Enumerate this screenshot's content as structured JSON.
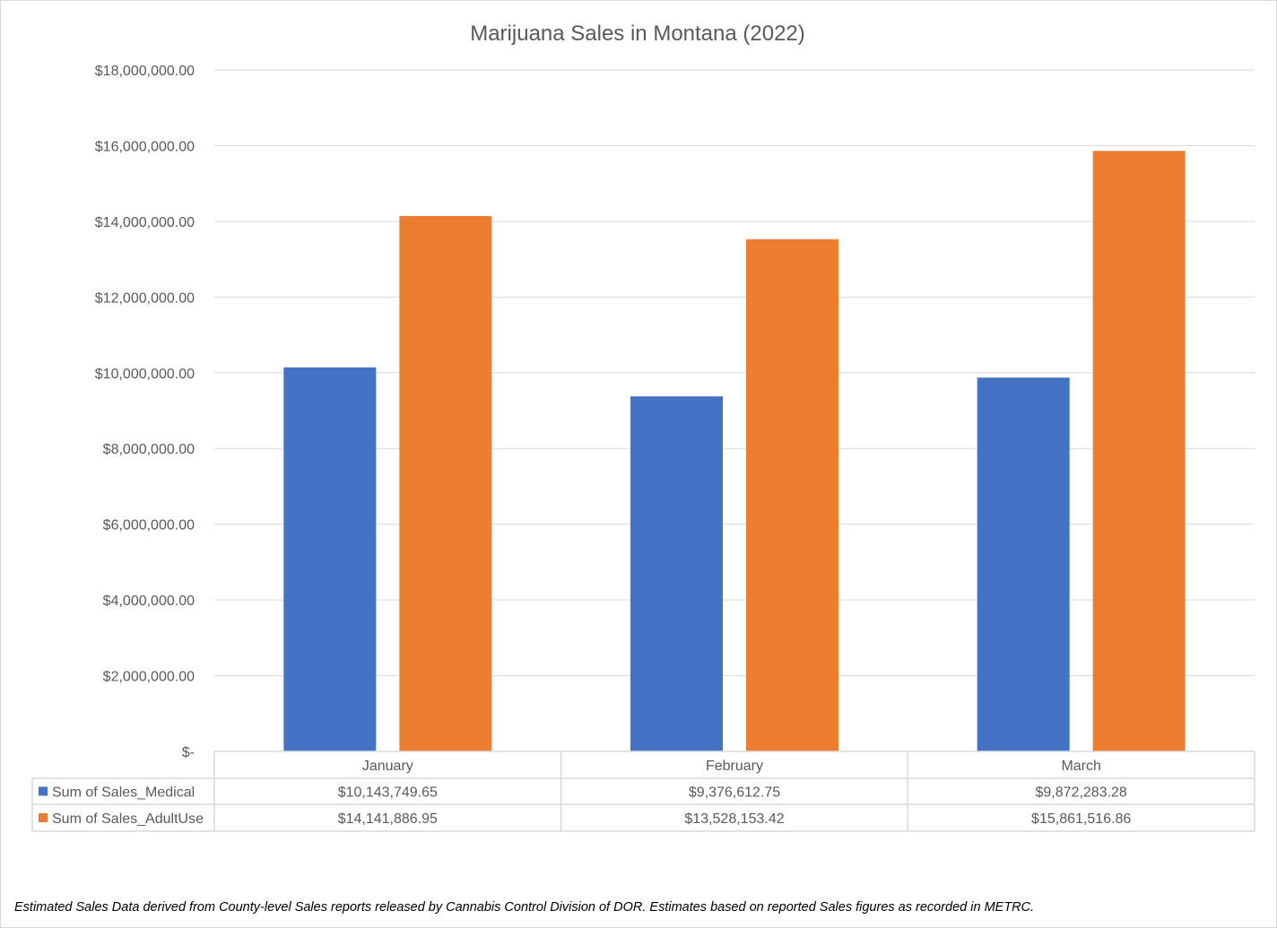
{
  "chart_data": {
    "type": "bar",
    "title": "Marijuana Sales in Montana (2022)",
    "categories": [
      "January",
      "February",
      "March"
    ],
    "series": [
      {
        "name": "Sum of Sales_Medical",
        "color": "#4472c4",
        "values": [
          10143749.65,
          9376612.75,
          9872283.28
        ],
        "labels": [
          "$10,143,749.65",
          "$9,376,612.75",
          "$9,872,283.28"
        ]
      },
      {
        "name": "Sum of Sales_AdultUse",
        "color": "#ed7d31",
        "values": [
          14141886.95,
          13528153.42,
          15861516.86
        ],
        "labels": [
          "$14,141,886.95",
          "$13,528,153.42",
          "$15,861,516.86"
        ]
      }
    ],
    "ylim": [
      0,
      18000000
    ],
    "yticks": [
      0,
      2000000,
      4000000,
      6000000,
      8000000,
      10000000,
      12000000,
      14000000,
      16000000,
      18000000
    ],
    "ytick_labels": [
      "$-",
      "$2,000,000.00",
      "$4,000,000.00",
      "$6,000,000.00",
      "$8,000,000.00",
      "$10,000,000.00",
      "$12,000,000.00",
      "$14,000,000.00",
      "$16,000,000.00",
      "$18,000,000.00"
    ],
    "grid": true,
    "legend": "data-table"
  },
  "footnote": "Estimated Sales Data derived from County-level Sales reports released by Cannabis Control Division of DOR.  Estimates based on reported Sales figures as recorded in METRC."
}
